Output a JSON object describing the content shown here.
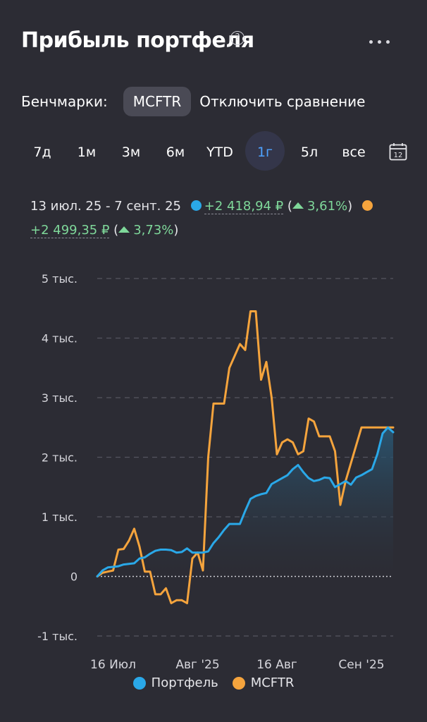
{
  "header": {
    "title": "Прибыль портфеля",
    "help_glyph": "?"
  },
  "benchmarks": {
    "label": "Бенчмарки:",
    "chip": "MCFTR",
    "disable": "Отключить сравнение"
  },
  "periods": [
    {
      "label": "7д",
      "active": false
    },
    {
      "label": "1м",
      "active": false
    },
    {
      "label": "3м",
      "active": false
    },
    {
      "label": "6м",
      "active": false
    },
    {
      "label": "YTD",
      "active": false
    },
    {
      "label": "1г",
      "active": true
    },
    {
      "label": "5л",
      "active": false
    },
    {
      "label": "все",
      "active": false
    }
  ],
  "calendar_day": "12",
  "summary": {
    "range": "13 июл. 25 - 7 сент. 25",
    "portfolio_gain": "+2 418,94 ₽",
    "portfolio_pct": "3,61%",
    "benchmark_gain": "+2 499,35 ₽",
    "benchmark_pct": "3,73%",
    "open_paren": "(",
    "close_paren": ")"
  },
  "colors": {
    "portfolio": "#2aa8e8",
    "benchmark": "#f5a43d",
    "background": "#2c2c34",
    "active": "#4ea2ff"
  },
  "chart_data": {
    "type": "line",
    "ylim": [
      -1000,
      5000
    ],
    "y_ticks": [
      {
        "value": 5000,
        "label": "5 тыс."
      },
      {
        "value": 4000,
        "label": "4 тыс."
      },
      {
        "value": 3000,
        "label": "3 тыс."
      },
      {
        "value": 2000,
        "label": "2 тыс."
      },
      {
        "value": 1000,
        "label": "1 тыс."
      },
      {
        "value": 0,
        "label": "0"
      },
      {
        "value": -1000,
        "label": "-1 тыс."
      }
    ],
    "x_ticks": [
      {
        "day": 3,
        "label": "16 Июл"
      },
      {
        "day": 19,
        "label": "Авг '25"
      },
      {
        "day": 34,
        "label": "16 Авг"
      },
      {
        "day": 50,
        "label": "Сен '25"
      }
    ],
    "x_range": [
      0,
      56
    ],
    "series": [
      {
        "name": "Портфель",
        "color": "#2aa8e8",
        "area": true,
        "points": [
          [
            0,
            0
          ],
          [
            1,
            100
          ],
          [
            2,
            150
          ],
          [
            3,
            160
          ],
          [
            4,
            170
          ],
          [
            5,
            200
          ],
          [
            6,
            210
          ],
          [
            7,
            220
          ],
          [
            8,
            300
          ],
          [
            9,
            320
          ],
          [
            10,
            380
          ],
          [
            11,
            430
          ],
          [
            12,
            450
          ],
          [
            13,
            450
          ],
          [
            14,
            440
          ],
          [
            15,
            400
          ],
          [
            16,
            410
          ],
          [
            17,
            470
          ],
          [
            18,
            400
          ],
          [
            19,
            400
          ],
          [
            20,
            400
          ],
          [
            21,
            420
          ],
          [
            22,
            560
          ],
          [
            23,
            660
          ],
          [
            24,
            780
          ],
          [
            25,
            880
          ],
          [
            26,
            880
          ],
          [
            27,
            880
          ],
          [
            28,
            1100
          ],
          [
            29,
            1300
          ],
          [
            30,
            1350
          ],
          [
            31,
            1380
          ],
          [
            32,
            1400
          ],
          [
            33,
            1550
          ],
          [
            34,
            1600
          ],
          [
            35,
            1650
          ],
          [
            36,
            1700
          ],
          [
            37,
            1800
          ],
          [
            38,
            1870
          ],
          [
            39,
            1750
          ],
          [
            40,
            1650
          ],
          [
            41,
            1600
          ],
          [
            42,
            1620
          ],
          [
            43,
            1660
          ],
          [
            44,
            1650
          ],
          [
            45,
            1500
          ],
          [
            46,
            1550
          ],
          [
            47,
            1600
          ],
          [
            48,
            1540
          ],
          [
            49,
            1660
          ],
          [
            50,
            1700
          ],
          [
            51,
            1750
          ],
          [
            52,
            1800
          ],
          [
            53,
            2050
          ],
          [
            54,
            2400
          ],
          [
            55,
            2500
          ],
          [
            56,
            2420
          ]
        ]
      },
      {
        "name": "MCFTR",
        "color": "#f5a43d",
        "area": false,
        "points": [
          [
            0,
            0
          ],
          [
            1,
            60
          ],
          [
            2,
            80
          ],
          [
            3,
            100
          ],
          [
            4,
            450
          ],
          [
            5,
            460
          ],
          [
            6,
            600
          ],
          [
            7,
            800
          ],
          [
            8,
            500
          ],
          [
            9,
            80
          ],
          [
            10,
            80
          ],
          [
            11,
            -300
          ],
          [
            12,
            -300
          ],
          [
            13,
            -200
          ],
          [
            14,
            -450
          ],
          [
            15,
            -400
          ],
          [
            16,
            -400
          ],
          [
            17,
            -450
          ],
          [
            18,
            300
          ],
          [
            19,
            400
          ],
          [
            20,
            100
          ],
          [
            21,
            2000
          ],
          [
            22,
            2900
          ],
          [
            23,
            2900
          ],
          [
            24,
            2900
          ],
          [
            25,
            3500
          ],
          [
            26,
            3700
          ],
          [
            27,
            3900
          ],
          [
            28,
            3800
          ],
          [
            29,
            4450
          ],
          [
            30,
            4450
          ],
          [
            31,
            3300
          ],
          [
            32,
            3600
          ],
          [
            33,
            3000
          ],
          [
            34,
            2050
          ],
          [
            35,
            2250
          ],
          [
            36,
            2300
          ],
          [
            37,
            2250
          ],
          [
            38,
            2050
          ],
          [
            39,
            2100
          ],
          [
            40,
            2650
          ],
          [
            41,
            2600
          ],
          [
            42,
            2350
          ],
          [
            43,
            2350
          ],
          [
            44,
            2350
          ],
          [
            45,
            2100
          ],
          [
            46,
            1200
          ],
          [
            47,
            1600
          ],
          [
            48,
            1900
          ],
          [
            49,
            2200
          ],
          [
            50,
            2500
          ],
          [
            51,
            2500
          ],
          [
            52,
            2500
          ],
          [
            53,
            2500
          ],
          [
            54,
            2500
          ],
          [
            55,
            2500
          ],
          [
            56,
            2500
          ]
        ]
      }
    ]
  }
}
